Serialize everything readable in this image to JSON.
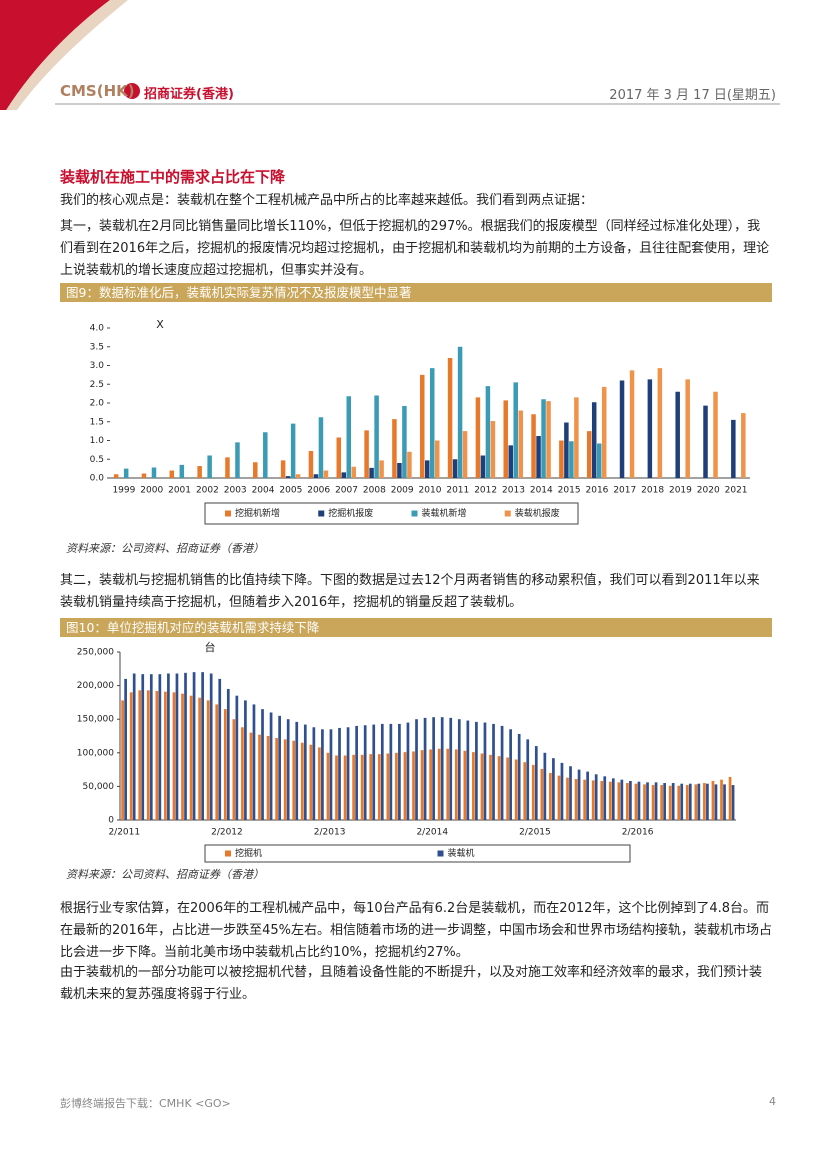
{
  "header": {
    "logo": "CMS(HK)",
    "company": "招商证券(香港)",
    "date": "2017 年 3 月 17 日(星期五)"
  },
  "heading": "装载机在施工中的需求占比在下降",
  "paragraphs": [
    "我们的核心观点是：装载机在整个工程机械产品中所占的比率越来越低。我们看到两点证据：",
    "其一，装载机在2月同比销售量同比增长110%，但低于挖掘机的297%。根据我们的报废模型（同样经过标准化处理），我们看到在2016年之后，挖掘机的报废情况均超过挖掘机，由于挖掘机和装载机均为前期的土方设备，且往往配套使用，理论上说装载机的增长速度应超过挖掘机，但事实并没有。",
    "其二，装载机与挖掘机销售的比值持续下降。下图的数据是过去12个月两者销售的移动累积值，我们可以看到2011年以来装载机销量持续高于挖掘机，但随着步入2016年，挖掘机的销量反超了装载机。",
    "根据行业专家估算，在2006年的工程机械产品中，每10台产品有6.2台是装载机，而在2012年，这个比例掉到了4.8台。而在最新的2016年，占比进一步跌至45%左右。相信随着市场的进一步调整，中国市场会和世界市场结构接轨，装载机市场占比会进一步下降。当前北美市场中装载机占比约10%，挖掘机约27%。",
    "由于装载机的一部分功能可以被挖掘机代替，且随着设备性能的不断提升，以及对施工效率和经济效率的最求，我们预计装载机未来的复苏强度将弱于行业。"
  ],
  "figures": [
    {
      "caption": "图9：数据标准化后，装载机实际复苏情况不及报废模型中显著",
      "source": "资料来源：公司资料、招商证券（香港）"
    },
    {
      "caption": "图10：单位挖掘机对应的装载机需求持续下降",
      "source": "资料来源：公司资料、招商证券（香港）"
    }
  ],
  "chart_data": [
    {
      "type": "bar",
      "annotation": "X",
      "categories": [
        "1999",
        "2000",
        "2001",
        "2002",
        "2003",
        "2004",
        "2005",
        "2006",
        "2007",
        "2008",
        "2009",
        "2010",
        "2011",
        "2012",
        "2013",
        "2014",
        "2015",
        "2016",
        "2017",
        "2018",
        "2019",
        "2020",
        "2021"
      ],
      "series": [
        {
          "name": "挖掘机新增",
          "color": "#e8792b",
          "values": [
            0.1,
            0.12,
            0.2,
            0.32,
            0.55,
            0.42,
            0.47,
            0.72,
            1.08,
            1.27,
            1.57,
            2.75,
            3.2,
            2.15,
            2.07,
            1.7,
            1.0,
            1.25,
            null,
            null,
            null,
            null,
            null
          ]
        },
        {
          "name": "挖掘机报废",
          "color": "#1f3f7a",
          "values": [
            null,
            null,
            null,
            null,
            null,
            null,
            0.05,
            0.1,
            0.15,
            0.27,
            0.4,
            0.47,
            0.5,
            0.6,
            0.87,
            1.12,
            1.48,
            2.02,
            2.6,
            2.63,
            2.3,
            1.93,
            1.55
          ]
        },
        {
          "name": "装载机新增",
          "color": "#3a9bb5",
          "values": [
            0.25,
            0.28,
            0.35,
            0.6,
            0.95,
            1.22,
            1.45,
            1.62,
            2.18,
            2.2,
            1.92,
            2.93,
            3.5,
            2.45,
            2.55,
            2.1,
            0.98,
            0.92,
            null,
            null,
            null,
            null,
            null
          ]
        },
        {
          "name": "装载机报废",
          "color": "#f0934a",
          "values": [
            null,
            null,
            null,
            null,
            null,
            null,
            0.1,
            0.2,
            0.3,
            0.47,
            0.7,
            1.0,
            1.25,
            1.52,
            1.8,
            2.05,
            2.15,
            2.43,
            2.87,
            2.93,
            2.63,
            2.3,
            1.73
          ]
        }
      ],
      "ylim": [
        0,
        4
      ],
      "yticks": [
        {
          "value": 0,
          "label": "0.0"
        },
        {
          "value": 0.5,
          "label": "0.5"
        },
        {
          "value": 1,
          "label": "1.0"
        },
        {
          "value": 1.5,
          "label": "1.5"
        },
        {
          "value": 2,
          "label": "2.0"
        },
        {
          "value": 2.5,
          "label": "2.5"
        },
        {
          "value": 3,
          "label": "3.0"
        },
        {
          "value": 3.5,
          "label": "3.5"
        },
        {
          "value": 4,
          "label": "4.0"
        }
      ],
      "legend": "bottom"
    },
    {
      "type": "bar",
      "annotation": "台",
      "categories": [
        "2/2011",
        null,
        null,
        null,
        null,
        null,
        null,
        null,
        null,
        null,
        null,
        null,
        "2/2012",
        null,
        null,
        null,
        null,
        null,
        null,
        null,
        null,
        null,
        null,
        null,
        "2/2013",
        null,
        null,
        null,
        null,
        null,
        null,
        null,
        null,
        null,
        null,
        null,
        "2/2014",
        null,
        null,
        null,
        null,
        null,
        null,
        null,
        null,
        null,
        null,
        null,
        "2/2015",
        null,
        null,
        null,
        null,
        null,
        null,
        null,
        null,
        null,
        null,
        null,
        "2/2016",
        null,
        null,
        null,
        null,
        null,
        null,
        null,
        null,
        null,
        null,
        null
      ],
      "series": [
        {
          "name": "挖掘机",
          "color": "#e8792b",
          "values": [
            178000,
            190000,
            193000,
            193000,
            192000,
            191000,
            190000,
            188000,
            185000,
            182000,
            178000,
            172000,
            165000,
            150000,
            138000,
            130000,
            127000,
            125000,
            122000,
            120000,
            118000,
            115000,
            112000,
            108000,
            100000,
            96000,
            96000,
            97000,
            97000,
            98000,
            98000,
            99000,
            100000,
            101000,
            102000,
            104000,
            105000,
            106000,
            106000,
            105000,
            103000,
            101000,
            99000,
            97000,
            95000,
            93000,
            90000,
            86000,
            82000,
            76000,
            70000,
            66000,
            63000,
            61000,
            60000,
            59000,
            58000,
            57000,
            56000,
            55000,
            54000,
            53000,
            52000,
            52000,
            51000,
            51000,
            52000,
            53000,
            55000,
            58000,
            60000,
            64000
          ]
        },
        {
          "name": "装载机",
          "color": "#2f4f8f",
          "values": [
            210000,
            218000,
            217000,
            217000,
            217000,
            218000,
            218000,
            219000,
            220000,
            220000,
            218000,
            210000,
            195000,
            185000,
            178000,
            172000,
            165000,
            160000,
            155000,
            150000,
            146000,
            142000,
            138000,
            135000,
            135000,
            137000,
            138000,
            140000,
            141000,
            142000,
            143000,
            143000,
            143000,
            145000,
            150000,
            152000,
            153000,
            153000,
            152000,
            150000,
            148000,
            146000,
            145000,
            143000,
            140000,
            135000,
            128000,
            120000,
            110000,
            100000,
            92000,
            85000,
            80000,
            75000,
            72000,
            68000,
            65000,
            62000,
            60000,
            58000,
            57000,
            56000,
            56000,
            55000,
            55000,
            54000,
            54000,
            54000,
            54000,
            53000,
            53000,
            52000
          ]
        }
      ],
      "ylim": [
        0,
        250000
      ],
      "yticks": [
        0,
        {
          "value": 50000,
          "label": "50,000"
        },
        {
          "value": 100000,
          "label": "100,000"
        },
        {
          "value": 150000,
          "label": "150,000"
        },
        {
          "value": 200000,
          "label": "200,000"
        },
        {
          "value": 250000,
          "label": "250,000"
        }
      ],
      "legend": "bottom"
    }
  ],
  "footer": {
    "text": "彭博终端报告下载：CMHK <GO>",
    "page": "4"
  }
}
